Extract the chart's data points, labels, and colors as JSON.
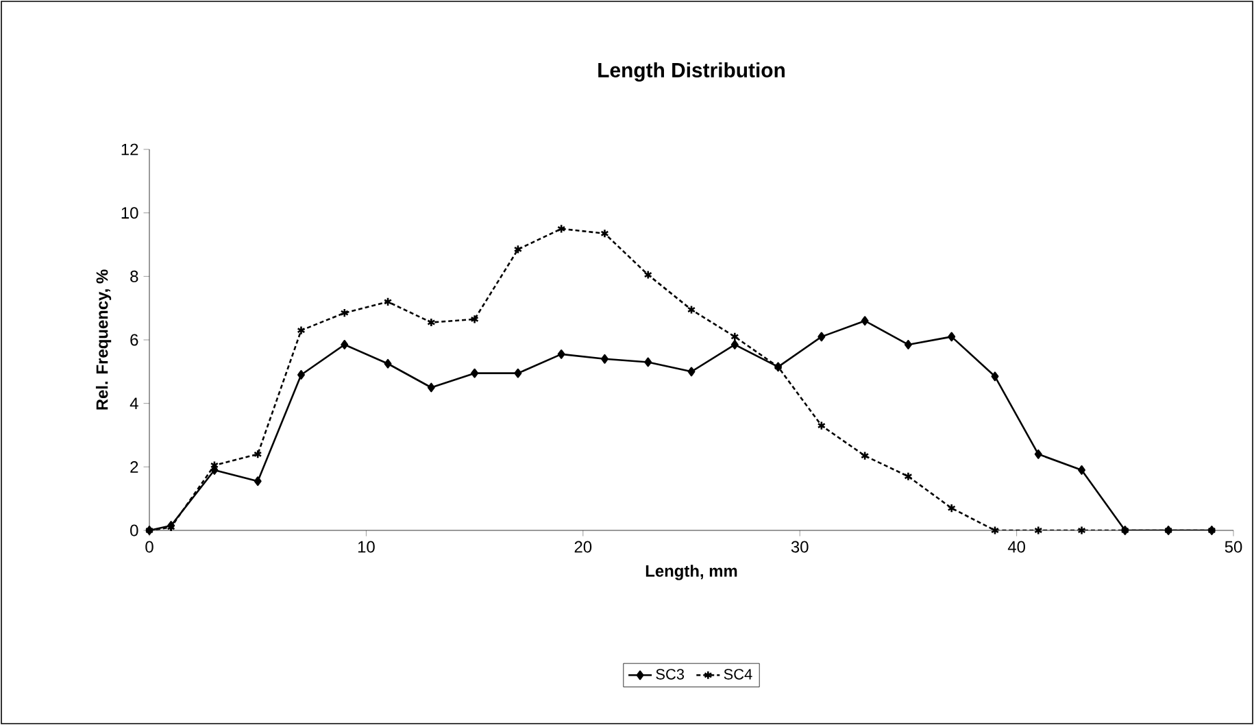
{
  "chart_data": {
    "type": "line",
    "title": "Length Distribution",
    "xlabel": "Length, mm",
    "ylabel": "Rel. Frequency, %",
    "x": [
      0,
      1,
      3,
      5,
      7,
      9,
      11,
      13,
      15,
      17,
      19,
      21,
      23,
      25,
      27,
      29,
      31,
      33,
      35,
      37,
      39,
      41,
      43,
      45,
      47,
      49
    ],
    "series": [
      {
        "name": "SC3",
        "color": "#000000",
        "marker": "diamond",
        "line_style": "solid",
        "values": [
          0,
          0.15,
          1.9,
          1.55,
          4.9,
          5.85,
          5.25,
          4.5,
          4.95,
          4.95,
          5.55,
          5.4,
          5.3,
          5.0,
          5.85,
          5.15,
          6.1,
          6.6,
          5.85,
          6.1,
          4.85,
          2.4,
          1.9,
          0,
          0,
          0
        ]
      },
      {
        "name": "SC4",
        "color": "#000000",
        "marker": "cross",
        "line_style": "dashed",
        "values": [
          0,
          0.1,
          2.05,
          2.4,
          6.3,
          6.85,
          7.2,
          6.55,
          6.65,
          8.85,
          9.5,
          9.35,
          8.05,
          6.95,
          6.1,
          5.15,
          3.3,
          2.35,
          1.7,
          0.7,
          0,
          0,
          0,
          0,
          0,
          0
        ]
      }
    ],
    "xlim": [
      0,
      50
    ],
    "ylim": [
      0,
      12
    ],
    "xticks": [
      0,
      10,
      20,
      30,
      40,
      50
    ],
    "yticks": [
      0,
      2,
      4,
      6,
      8,
      10,
      12
    ],
    "grid": false,
    "legend": "bottom"
  }
}
